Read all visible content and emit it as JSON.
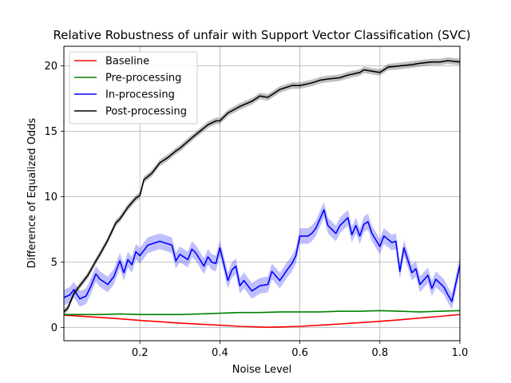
{
  "chart_data": {
    "type": "line",
    "title": "Relative Robustness of unfair with Support Vector Classification (SVC)",
    "xlabel": "Noise Level",
    "ylabel": "Difference of Equalized Odds",
    "xlim": [
      0.01,
      1.0
    ],
    "ylim": [
      -1.0,
      21.5
    ],
    "xticks": [
      0.2,
      0.4,
      0.6,
      0.8,
      1.0
    ],
    "xtick_labels": [
      "0.2",
      "0.4",
      "0.6",
      "0.8",
      "1.0"
    ],
    "yticks": [
      0,
      5,
      10,
      15,
      20
    ],
    "ytick_labels": [
      "0",
      "5",
      "10",
      "15",
      "20"
    ],
    "grid": true,
    "legend_position": "top-left",
    "series": [
      {
        "name": "Baseline",
        "color": "#ff0000",
        "band": 0,
        "x": [
          0.01,
          0.05,
          0.1,
          0.15,
          0.2,
          0.25,
          0.3,
          0.35,
          0.4,
          0.45,
          0.5,
          0.52,
          0.55,
          0.6,
          0.65,
          0.7,
          0.75,
          0.8,
          0.85,
          0.9,
          0.95,
          1.0
        ],
        "y": [
          0.95,
          0.88,
          0.78,
          0.67,
          0.55,
          0.45,
          0.35,
          0.26,
          0.18,
          0.1,
          0.05,
          0.03,
          0.05,
          0.1,
          0.18,
          0.28,
          0.38,
          0.48,
          0.6,
          0.73,
          0.86,
          1.0
        ]
      },
      {
        "name": "Pre-processing",
        "color": "#008000",
        "band": 0,
        "x": [
          0.01,
          0.05,
          0.1,
          0.15,
          0.2,
          0.25,
          0.3,
          0.35,
          0.4,
          0.45,
          0.5,
          0.55,
          0.6,
          0.65,
          0.7,
          0.75,
          0.8,
          0.85,
          0.9,
          0.95,
          1.0
        ],
        "y": [
          1.0,
          1.0,
          1.0,
          1.05,
          1.0,
          1.0,
          1.0,
          1.05,
          1.1,
          1.15,
          1.15,
          1.2,
          1.2,
          1.2,
          1.25,
          1.25,
          1.3,
          1.25,
          1.2,
          1.25,
          1.3
        ]
      },
      {
        "name": "In-processing",
        "color": "#0000ff",
        "band": 0.6,
        "x": [
          0.01,
          0.025,
          0.035,
          0.05,
          0.065,
          0.075,
          0.09,
          0.1,
          0.12,
          0.135,
          0.15,
          0.16,
          0.17,
          0.18,
          0.19,
          0.2,
          0.21,
          0.22,
          0.25,
          0.28,
          0.29,
          0.3,
          0.32,
          0.33,
          0.34,
          0.36,
          0.37,
          0.38,
          0.39,
          0.4,
          0.42,
          0.43,
          0.44,
          0.45,
          0.46,
          0.48,
          0.5,
          0.52,
          0.53,
          0.55,
          0.57,
          0.58,
          0.59,
          0.6,
          0.62,
          0.63,
          0.64,
          0.66,
          0.67,
          0.69,
          0.7,
          0.72,
          0.73,
          0.74,
          0.75,
          0.76,
          0.77,
          0.78,
          0.8,
          0.81,
          0.83,
          0.84,
          0.85,
          0.86,
          0.88,
          0.89,
          0.9,
          0.92,
          0.93,
          0.94,
          0.96,
          0.97,
          0.98,
          1.0
        ],
        "y": [
          2.3,
          2.5,
          2.9,
          2.2,
          2.4,
          3.0,
          4.1,
          3.7,
          3.3,
          3.9,
          5.1,
          4.2,
          5.2,
          4.8,
          5.8,
          5.5,
          5.9,
          6.3,
          6.6,
          6.3,
          5.1,
          5.6,
          5.2,
          6.0,
          5.7,
          4.7,
          5.4,
          5.0,
          4.9,
          6.1,
          3.6,
          4.4,
          4.7,
          3.2,
          3.6,
          2.8,
          3.2,
          3.3,
          4.3,
          3.6,
          4.5,
          4.9,
          5.5,
          7.0,
          7.0,
          7.2,
          7.6,
          9.0,
          7.8,
          7.2,
          7.8,
          8.4,
          7.1,
          7.8,
          7.0,
          7.9,
          8.1,
          7.2,
          6.2,
          7.0,
          6.5,
          6.6,
          4.3,
          6.1,
          4.2,
          4.5,
          3.3,
          4.0,
          3.0,
          3.7,
          3.1,
          2.5,
          2.0,
          4.8
        ]
      },
      {
        "name": "Post-processing",
        "color": "#000000",
        "band": 0.25,
        "x": [
          0.01,
          0.02,
          0.035,
          0.05,
          0.07,
          0.09,
          0.1,
          0.12,
          0.14,
          0.15,
          0.17,
          0.19,
          0.2,
          0.21,
          0.23,
          0.25,
          0.27,
          0.29,
          0.3,
          0.33,
          0.35,
          0.37,
          0.39,
          0.4,
          0.42,
          0.45,
          0.48,
          0.5,
          0.52,
          0.55,
          0.58,
          0.6,
          0.63,
          0.65,
          0.67,
          0.7,
          0.72,
          0.75,
          0.76,
          0.78,
          0.8,
          0.82,
          0.85,
          0.88,
          0.9,
          0.93,
          0.95,
          0.97,
          1.0
        ],
        "y": [
          1.2,
          1.5,
          2.6,
          3.2,
          4.0,
          5.1,
          5.6,
          6.7,
          8.0,
          8.3,
          9.2,
          9.9,
          10.1,
          11.3,
          11.8,
          12.6,
          13.0,
          13.5,
          13.7,
          14.5,
          15.0,
          15.5,
          15.8,
          15.8,
          16.4,
          16.9,
          17.3,
          17.7,
          17.6,
          18.2,
          18.5,
          18.5,
          18.7,
          18.9,
          19.0,
          19.1,
          19.3,
          19.5,
          19.7,
          19.6,
          19.5,
          19.9,
          20.0,
          20.1,
          20.2,
          20.3,
          20.3,
          20.4,
          20.3
        ]
      }
    ]
  }
}
